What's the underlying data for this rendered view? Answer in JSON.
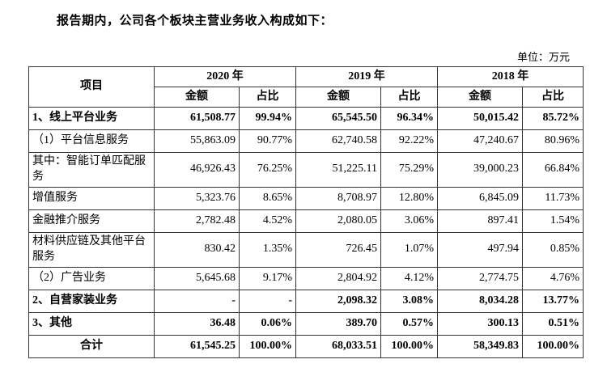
{
  "page": {
    "intro": "报告期内，公司各个板块主营业务收入构成如下：",
    "unit_label": "单位：万元"
  },
  "table": {
    "header": {
      "item": "项目",
      "years": [
        "2020 年",
        "2019 年",
        "2018 年"
      ],
      "amount": "金额",
      "ratio": "占比"
    },
    "rows": [
      {
        "label": "1、线上平台业务",
        "bold": true,
        "total": false,
        "cells": [
          "61,508.77",
          "99.94%",
          "65,545.50",
          "96.34%",
          "50,015.42",
          "85.72%"
        ]
      },
      {
        "label": "（1）平台信息服务",
        "bold": false,
        "total": false,
        "cells": [
          "55,863.09",
          "90.77%",
          "62,740.58",
          "92.22%",
          "47,240.67",
          "80.96%"
        ]
      },
      {
        "label": "其中：智能订单匹配服务",
        "bold": false,
        "total": false,
        "cells": [
          "46,926.43",
          "76.25%",
          "51,225.11",
          "75.29%",
          "39,000.23",
          "66.84%"
        ]
      },
      {
        "label": "增值服务",
        "bold": false,
        "total": false,
        "cells": [
          "5,323.76",
          "8.65%",
          "8,708.97",
          "12.80%",
          "6,845.09",
          "11.73%"
        ]
      },
      {
        "label": "金融推介服务",
        "bold": false,
        "total": false,
        "cells": [
          "2,782.48",
          "4.52%",
          "2,080.05",
          "3.06%",
          "897.41",
          "1.54%"
        ]
      },
      {
        "label": "材料供应链及其他平台服务",
        "bold": false,
        "total": false,
        "cells": [
          "830.42",
          "1.35%",
          "726.45",
          "1.07%",
          "497.94",
          "0.85%"
        ]
      },
      {
        "label": "（2）广告业务",
        "bold": false,
        "total": false,
        "cells": [
          "5,645.68",
          "9.17%",
          "2,804.92",
          "4.12%",
          "2,774.75",
          "4.76%"
        ]
      },
      {
        "label": "2、自营家装业务",
        "bold": true,
        "total": false,
        "cells": [
          "-",
          "-",
          "2,098.32",
          "3.08%",
          "8,034.28",
          "13.77%"
        ]
      },
      {
        "label": "3、其他",
        "bold": true,
        "total": false,
        "cells": [
          "36.48",
          "0.06%",
          "389.70",
          "0.57%",
          "300.13",
          "0.51%"
        ]
      },
      {
        "label": "合计",
        "bold": true,
        "total": true,
        "cells": [
          "61,545.25",
          "100.00%",
          "68,033.51",
          "100.00%",
          "58,349.83",
          "100.00%"
        ]
      }
    ]
  }
}
